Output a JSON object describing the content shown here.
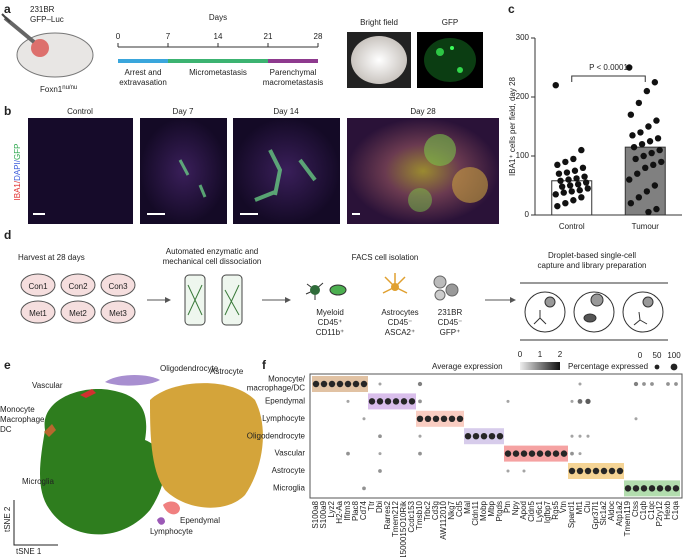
{
  "panel_letters": [
    "a",
    "b",
    "c",
    "d",
    "e",
    "f"
  ],
  "a": {
    "cell_line": "231BR",
    "reporter": "GFP–Luc",
    "strain": "Foxn1",
    "genotype": "nu/nu",
    "axis_title": "Days",
    "ticks": [
      0,
      7,
      14,
      21,
      28
    ],
    "phases": [
      {
        "lines": [
          "Arrest and",
          "extravasation"
        ],
        "start": 0,
        "end": 7,
        "color": "#3aa6dc"
      },
      {
        "lines": [
          "Micrometastasis"
        ],
        "start": 7,
        "end": 21,
        "color": "#3cb371"
      },
      {
        "lines": [
          "Parenchymal",
          "macrometastasis"
        ],
        "start": 21,
        "end": 28,
        "color": "#8e3a8e"
      }
    ],
    "images": [
      "Bright field",
      "GFP"
    ]
  },
  "b": {
    "images": [
      "Control",
      "Day 7",
      "Day 14",
      "Day 28"
    ],
    "ylabel_parts": [
      {
        "text": "IBA1/",
        "color": "#e03030"
      },
      {
        "text": "DAPI/",
        "color": "#3b5bdb"
      },
      {
        "text": "GFP",
        "color": "#2fa84f"
      }
    ]
  },
  "chart_data": {
    "type": "bar",
    "categories": [
      "Control",
      "Tumour"
    ],
    "values": [
      58,
      115
    ],
    "colors": [
      "#ffffff",
      "#808080"
    ],
    "points": [
      [
        220,
        110,
        95,
        90,
        85,
        80,
        75,
        72,
        70,
        65,
        62,
        60,
        58,
        55,
        52,
        50,
        48,
        45,
        42,
        40,
        38,
        35,
        30,
        25,
        20,
        15
      ],
      [
        250,
        225,
        210,
        190,
        170,
        160,
        150,
        140,
        135,
        130,
        125,
        120,
        115,
        110,
        105,
        100,
        95,
        90,
        85,
        80,
        70,
        60,
        50,
        40,
        30,
        20,
        10,
        5
      ]
    ],
    "ylim": [
      0,
      300
    ],
    "yticks": [
      0,
      100,
      200,
      300
    ],
    "ylabel": "IBA1⁺ cells per field, day 28",
    "annotation": "P < 0.0001"
  },
  "d": {
    "harvest": "Harvest at 28 days",
    "mice": [
      "Con1",
      "Con2",
      "Con3",
      "Met1",
      "Met2",
      "Met3"
    ],
    "dissociation": [
      "Automated enzymatic and",
      "mechanical cell dissociation"
    ],
    "facs": "FACS cell isolation",
    "populations": [
      {
        "lines": [
          "Myeloid",
          "CD45⁺",
          "CD11b⁺"
        ]
      },
      {
        "lines": [
          "Astrocytes",
          "CD45⁻",
          "ASCA2⁺"
        ]
      },
      {
        "lines": [
          "231BR",
          "CD45⁻",
          "GFP⁺"
        ]
      }
    ],
    "droplet": [
      "Droplet-based single-cell",
      "capture and library preparation"
    ]
  },
  "e": {
    "clusters": [
      {
        "lines": [
          "Oligodendrocyte"
        ],
        "color": "#a88fd0"
      },
      {
        "lines": [
          "Astrocyte"
        ],
        "color": "#d4a43a"
      },
      {
        "lines": [
          "Vascular"
        ],
        "color": "#d32f2f"
      },
      {
        "lines": [
          "Monocyte",
          "Macrophage",
          "DC"
        ],
        "color": "#b8672e"
      },
      {
        "lines": [
          "Microglia"
        ],
        "color": "#2e7d1e"
      },
      {
        "lines": [
          "Lymphocyte"
        ],
        "color": "#f08080"
      },
      {
        "lines": [
          "Ependymal"
        ],
        "color": "#9b59b6"
      }
    ],
    "xlabel": "tSNE 1",
    "ylabel": "tSNE 2"
  },
  "f": {
    "legend_expression": "Average expression",
    "expression_ticks": [
      0,
      1,
      2
    ],
    "legend_percent": "Percentage expressed",
    "percent_ticks": [
      0,
      50,
      100
    ],
    "rows": [
      {
        "lines": [
          "Monocyte/",
          "macrophage/DC"
        ],
        "highlight": "#d9b38c"
      },
      {
        "lines": [
          "Ependymal"
        ],
        "highlight": "#cfaee6"
      },
      {
        "lines": [
          "Lymphocyte"
        ],
        "highlight": "#f7c1b3"
      },
      {
        "lines": [
          "Oligodendrocyte"
        ],
        "highlight": "#cdbfe6"
      },
      {
        "lines": [
          "Vascular"
        ],
        "highlight": "#f28b8b"
      },
      {
        "lines": [
          "Astrocyte"
        ],
        "highlight": "#f2c97a"
      },
      {
        "lines": [
          "Microglia"
        ],
        "highlight": "#9fd49a"
      }
    ],
    "genes": [
      "S100a8",
      "S100a9",
      "Lyz2",
      "H2-Aa",
      "Ifitm3",
      "Plac8",
      "Cd74",
      "Ttr",
      "Dbi",
      "Rarres2",
      "Tmem212",
      "1500015O10Rik",
      "Ccdc153",
      "Tmsb10",
      "Trbc2",
      "Cd3g",
      "AW112010",
      "Nkg7",
      "Ccl5",
      "Mal",
      "Cldn11",
      "Mobp",
      "Mbp",
      "Ptgds",
      "Ptn",
      "Npy",
      "Apod",
      "Cldn5",
      "Ly6c1",
      "Igfbp7",
      "Rgs5",
      "Vtn",
      "Sparcl1",
      "Mt1",
      "Clu",
      "Gpr37l1",
      "Slc1a2",
      "Aldoc",
      "Atp1a2",
      "Tmem119",
      "Ctss",
      "C1qb",
      "C1qc",
      "P2ry12",
      "Hexb",
      "C1qa"
    ],
    "percent": [
      [
        90,
        90,
        90,
        90,
        90,
        90,
        90,
        0,
        20,
        0,
        0,
        0,
        0,
        40,
        0,
        0,
        0,
        0,
        0,
        0,
        0,
        0,
        0,
        0,
        0,
        0,
        0,
        0,
        0,
        0,
        0,
        0,
        0,
        20,
        0,
        0,
        0,
        0,
        0,
        0,
        40,
        30,
        30,
        0,
        30,
        30
      ],
      [
        0,
        0,
        0,
        0,
        20,
        0,
        0,
        90,
        90,
        90,
        90,
        90,
        90,
        30,
        0,
        0,
        0,
        0,
        0,
        0,
        0,
        0,
        0,
        0,
        20,
        0,
        0,
        0,
        0,
        0,
        0,
        0,
        20,
        50,
        60,
        0,
        0,
        0,
        0,
        0,
        0,
        0,
        0,
        0,
        0,
        0
      ],
      [
        0,
        0,
        0,
        0,
        0,
        0,
        20,
        0,
        0,
        0,
        0,
        0,
        0,
        90,
        90,
        90,
        90,
        90,
        90,
        0,
        0,
        0,
        0,
        0,
        0,
        0,
        0,
        0,
        0,
        0,
        0,
        0,
        0,
        0,
        0,
        0,
        0,
        0,
        0,
        0,
        20,
        0,
        0,
        0,
        0,
        0
      ],
      [
        0,
        0,
        0,
        0,
        0,
        0,
        0,
        0,
        30,
        0,
        0,
        0,
        0,
        20,
        0,
        0,
        0,
        0,
        0,
        90,
        90,
        90,
        90,
        90,
        0,
        0,
        0,
        0,
        0,
        0,
        0,
        0,
        20,
        20,
        20,
        0,
        0,
        0,
        0,
        0,
        0,
        0,
        0,
        0,
        0,
        0
      ],
      [
        0,
        0,
        0,
        0,
        30,
        0,
        0,
        0,
        20,
        0,
        0,
        0,
        0,
        30,
        0,
        0,
        0,
        0,
        0,
        0,
        0,
        0,
        0,
        0,
        90,
        90,
        90,
        90,
        90,
        90,
        90,
        90,
        30,
        20,
        0,
        0,
        0,
        0,
        0,
        0,
        0,
        0,
        0,
        0,
        0,
        0
      ],
      [
        0,
        0,
        0,
        0,
        0,
        0,
        0,
        0,
        30,
        0,
        0,
        0,
        0,
        0,
        0,
        0,
        0,
        0,
        0,
        0,
        0,
        0,
        0,
        0,
        20,
        0,
        20,
        0,
        0,
        0,
        0,
        0,
        90,
        90,
        90,
        90,
        90,
        90,
        90,
        0,
        0,
        0,
        0,
        0,
        0,
        0
      ],
      [
        0,
        0,
        0,
        0,
        0,
        0,
        30,
        0,
        0,
        0,
        0,
        0,
        0,
        0,
        0,
        0,
        0,
        0,
        0,
        0,
        0,
        0,
        0,
        0,
        0,
        0,
        0,
        0,
        0,
        0,
        0,
        0,
        0,
        0,
        0,
        0,
        0,
        0,
        0,
        90,
        90,
        90,
        90,
        90,
        90,
        90
      ]
    ]
  }
}
